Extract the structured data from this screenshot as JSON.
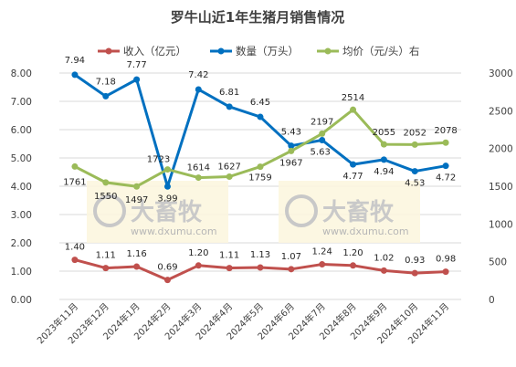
{
  "chart_data": {
    "type": "line",
    "title": "罗牛山近1年生猪月销售情况",
    "categories": [
      "2023年11月",
      "2023年12月",
      "2024年1月",
      "2024年2月",
      "2024年3月",
      "2024年4月",
      "2024年5月",
      "2024年6月",
      "2024年7月",
      "2024年8月",
      "2024年9月",
      "2024年10月",
      "2024年11月"
    ],
    "y_left": {
      "ylim": [
        0,
        8
      ],
      "ticks": [
        "0.00",
        "1.00",
        "2.00",
        "3.00",
        "4.00",
        "5.00",
        "6.00",
        "7.00",
        "8.00"
      ]
    },
    "y_right": {
      "ylim": [
        0,
        3000
      ],
      "ticks": [
        "0",
        "500",
        "1000",
        "1500",
        "2000",
        "2500",
        "3000"
      ]
    },
    "grid": true,
    "legend_placement": "top",
    "series": [
      {
        "name": "收入（亿元）",
        "axis": "left",
        "color": "#c0504d",
        "values": [
          1.4,
          1.11,
          1.16,
          0.69,
          1.2,
          1.11,
          1.13,
          1.07,
          1.24,
          1.2,
          1.02,
          0.93,
          0.98
        ],
        "labels": [
          "1.40",
          "1.11",
          "1.16",
          "0.69",
          "1.20",
          "1.11",
          "1.13",
          "1.07",
          "1.24",
          "1.20",
          "1.02",
          "0.93",
          "0.98"
        ]
      },
      {
        "name": "数量（万头）",
        "axis": "left",
        "color": "#0070c0",
        "values": [
          7.94,
          7.18,
          7.77,
          3.99,
          7.42,
          6.81,
          6.45,
          5.43,
          5.63,
          4.77,
          4.94,
          4.53,
          4.72
        ],
        "labels": [
          "7.94",
          "7.18",
          "7.77",
          "3.99",
          "7.42",
          "6.81",
          "6.45",
          "5.43",
          "5.63",
          "4.77",
          "4.94",
          "4.53",
          "4.72"
        ]
      },
      {
        "name": "均价（元/头）右",
        "axis": "right",
        "color": "#9bbb59",
        "values": [
          1761,
          1550,
          1497,
          1723,
          1614,
          1627,
          1759,
          1967,
          2197,
          2514,
          2055,
          2052,
          2078
        ],
        "labels": [
          "1761",
          "1550",
          "1497",
          "1723",
          "1614",
          "1627",
          "1759",
          "1967",
          "2197",
          "2514",
          "2055",
          "2052",
          "2078"
        ]
      }
    ],
    "watermark": {
      "brand": "大畜牧",
      "site": "www.dxumu.com"
    }
  }
}
